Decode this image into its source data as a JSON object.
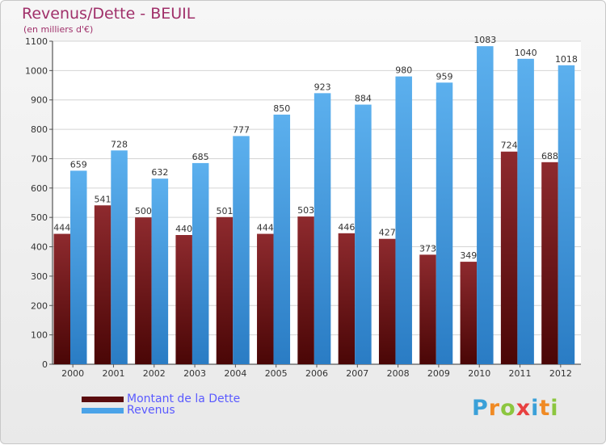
{
  "title": "Revenus/Dette - BEUIL",
  "subtitle": "(en milliers d'€)",
  "legend": [
    {
      "label": "Montant de la Dette",
      "color": "#7a1f22"
    },
    {
      "label": "Revenus",
      "color": "#4aa3e8"
    }
  ],
  "logo": {
    "text": "Proxiti",
    "letters": [
      "P",
      "r",
      "o",
      "x",
      "i",
      "t",
      "i"
    ],
    "colors": [
      "#3aa0d8",
      "#f08a24",
      "#8cc63f",
      "#e84040",
      "#3aa0d8",
      "#f08a24",
      "#8cc63f"
    ]
  },
  "chart_data": {
    "type": "bar",
    "categories": [
      "2000",
      "2001",
      "2002",
      "2003",
      "2004",
      "2005",
      "2006",
      "2007",
      "2008",
      "2009",
      "2010",
      "2011",
      "2012"
    ],
    "series": [
      {
        "name": "Montant de la Dette",
        "values": [
          444,
          541,
          500,
          440,
          501,
          444,
          503,
          446,
          427,
          373,
          349,
          724,
          688
        ],
        "color": "#7a1f22"
      },
      {
        "name": "Revenus",
        "values": [
          659,
          728,
          632,
          685,
          777,
          850,
          923,
          884,
          980,
          959,
          1083,
          1040,
          1018
        ],
        "color": "#4aa3e8"
      }
    ],
    "ylim": [
      0,
      1100
    ],
    "yticks": [
      0,
      100,
      200,
      300,
      400,
      500,
      600,
      700,
      800,
      900,
      1000,
      1100
    ],
    "grid": true,
    "legend_position": "bottom-left"
  }
}
